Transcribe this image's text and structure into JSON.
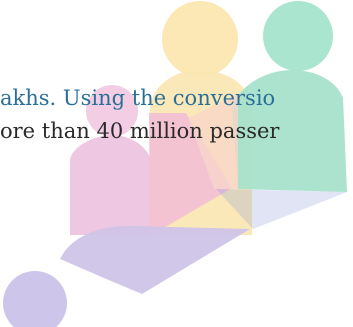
{
  "document": {
    "lines": [
      "akhs. Using the conversio",
      "ore than 40 million passer"
    ]
  },
  "watermark": {
    "icon": "people-group-logo-icon",
    "colors": {
      "yellow": "#fbe7b0",
      "green": "#a8e2cc",
      "pink": "#efc6df",
      "purple": "#cfc3e6"
    }
  }
}
